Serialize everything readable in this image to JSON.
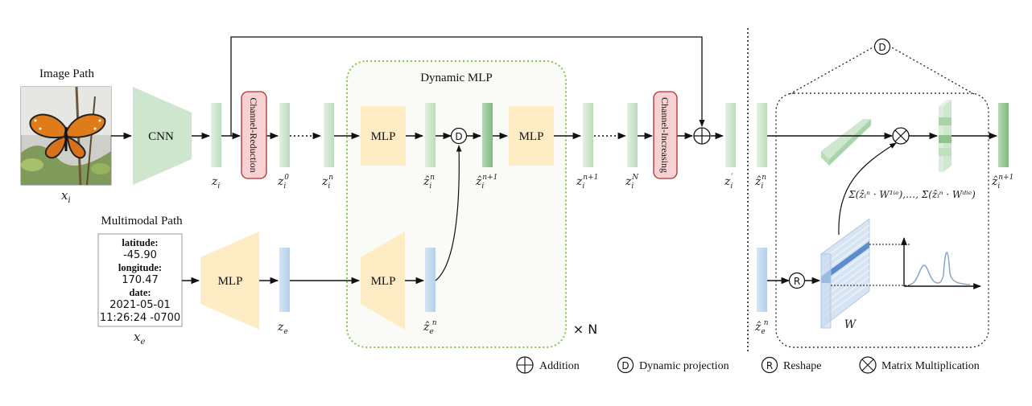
{
  "colors": {
    "green_block": "#cfe6cf",
    "green_block_dark": "#8fc48f",
    "blue_block": "#bfd7ee",
    "blue_strong": "#5b8ccc",
    "mlp_fill": "#fdecc4",
    "cnn_fill": "#cde6cd",
    "channel_fill": "#f8d2d2",
    "channel_stroke": "#b03030",
    "dynamic_border": "#8bc34a",
    "dynamic_fill": "#fafaf6",
    "arrow": "#111111"
  },
  "image_path": {
    "title": "Image Path",
    "image_icon": "butterfly-photo",
    "image_label": "x",
    "image_label_sub": "i"
  },
  "multimodal_path": {
    "title": "Multimodal Path",
    "lat_label": "latitude:",
    "lat_value": "-45.90",
    "lon_label": "longitude:",
    "lon_value": "170.47",
    "date_label": "date:",
    "date_value": "2021-05-01",
    "time_value": "11:26:24 -0700",
    "input_label": "x",
    "input_label_sub": "e"
  },
  "blocks": {
    "cnn": "CNN",
    "mlp_e": "MLP",
    "mlp_dyn_1": "MLP",
    "mlp_dyn_2": "MLP",
    "mlp_dyn_e": "MLP",
    "channel_reduction": "Channel-Reduction",
    "channel_increasing": "Channel-Increasing",
    "dynamic_title": "Dynamic MLP",
    "repeat": "× N",
    "op_d": "D",
    "op_r": "R",
    "matrix_w": "W"
  },
  "features": {
    "z_i": {
      "base": "z",
      "sub": "i",
      "sup": ""
    },
    "z_i0": {
      "base": "z",
      "sub": "i",
      "sup": "0"
    },
    "z_in": {
      "base": "z",
      "sub": "i",
      "sup": "n"
    },
    "zh_in": {
      "base": "ẑ",
      "sub": "i",
      "sup": "n"
    },
    "zh_in1": {
      "base": "ẑ",
      "sub": "i",
      "sup": "n+1"
    },
    "z_in1": {
      "base": "z",
      "sub": "i",
      "sup": "n+1"
    },
    "z_iN": {
      "base": "z",
      "sub": "i",
      "sup": "N"
    },
    "z_ip": {
      "base": "z",
      "sub": "i",
      "sup": "′"
    },
    "z_e": {
      "base": "z",
      "sub": "e",
      "sup": ""
    },
    "zh_en": {
      "base": "ẑ",
      "sub": "e",
      "sup": "n"
    },
    "r_zh_in": {
      "base": "ẑ",
      "sub": "i",
      "sup": "n"
    },
    "r_zh_en": {
      "base": "ẑ",
      "sub": "e",
      "sup": "n"
    },
    "r_zh_in1": {
      "base": "ẑ",
      "sub": "i",
      "sup": "n+1"
    }
  },
  "formula": "Σ(ẑᵢⁿ · W¹ⁱᵉ),…, Σ(ẑᵢⁿ · Wᵈⁱᵉ)",
  "legend": {
    "addition": "Addition",
    "dynamic_projection": "Dynamic projection",
    "reshape": "Reshape",
    "matrix_multiplication": "Matrix Multiplication"
  }
}
